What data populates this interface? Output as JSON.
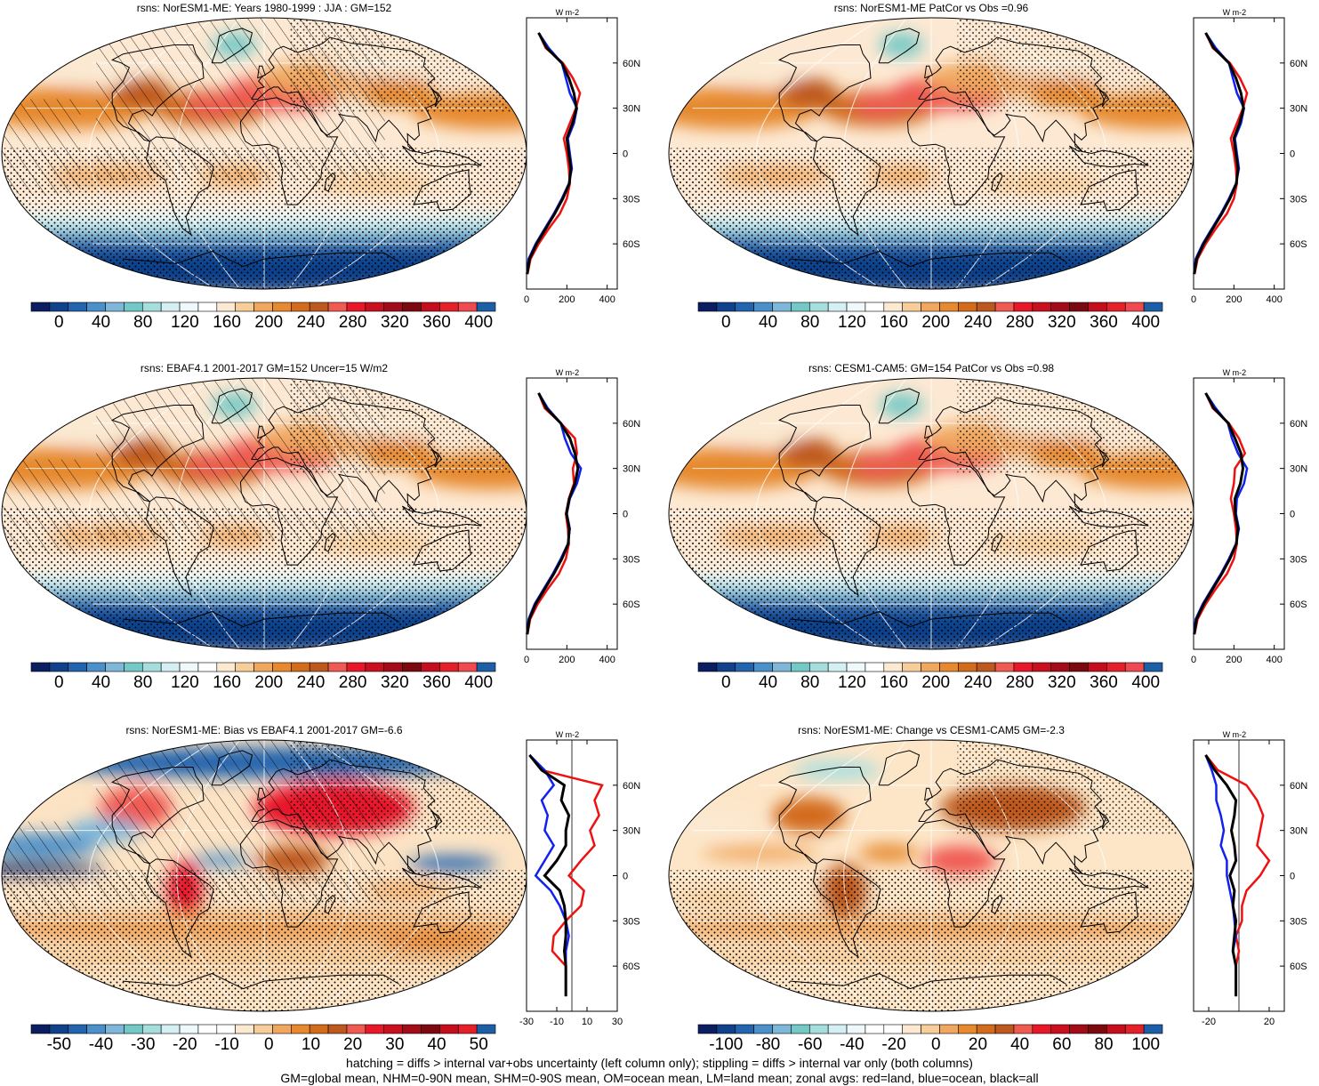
{
  "palettes": {
    "abs": [
      "#0c1e62",
      "#11418a",
      "#2264ad",
      "#4c90c9",
      "#7fb7d9",
      "#74c9c6",
      "#a6dede",
      "#d4f0f2",
      "#eff9fb",
      "#ffffff",
      "#fbe9d2",
      "#f7cd9a",
      "#f0a760",
      "#e6892f",
      "#d26b1c",
      "#bd581e",
      "#ef5a52",
      "#e8172a",
      "#c9101f",
      "#a20c18",
      "#7c0810",
      "#c40e1e",
      "#e4212b",
      "#ef4a4f",
      "#1c5fa6"
    ],
    "diff": [
      "#0c1e62",
      "#11418a",
      "#2264ad",
      "#4c90c9",
      "#7fb7d9",
      "#74c9c6",
      "#a6dede",
      "#d4f0f2",
      "#eff9fb",
      "#ffffff",
      "#ffffff",
      "#fbe9d2",
      "#f7cd9a",
      "#f0a760",
      "#e6892f",
      "#d26b1c",
      "#bd581e",
      "#ef5a52",
      "#e8172a",
      "#c9101f",
      "#a20c18",
      "#7c0810",
      "#c40e1e",
      "#e4212b",
      "#1c5fa6"
    ]
  },
  "chart_data": [
    {
      "type": "heatmap",
      "title": "rsns: NorESM1-ME: Years 1980-1999 : JJA : GM=152",
      "colorbar_labels": [
        "0",
        "40",
        "80",
        "120",
        "160",
        "200",
        "240",
        "280",
        "320",
        "360",
        "400"
      ],
      "palette": "abs",
      "field": "abs",
      "hatching": true,
      "zonal_profile": {
        "xlim": [
          0,
          450
        ],
        "xticks": [
          "0",
          "200",
          "400"
        ],
        "unit": "W m-2",
        "ylabels": [
          "60N",
          "30N",
          "0",
          "30S",
          "60S"
        ],
        "lat": [
          80,
          70,
          60,
          50,
          40,
          30,
          20,
          10,
          0,
          -10,
          -20,
          -30,
          -40,
          -50,
          -60,
          -70,
          -80
        ],
        "land": [
          60,
          95,
          180,
          230,
          265,
          245,
          215,
          185,
          200,
          210,
          215,
          200,
          165,
          110,
          60,
          20,
          5
        ],
        "ocean": [
          60,
          110,
          175,
          195,
          215,
          250,
          235,
          205,
          215,
          225,
          210,
          175,
          135,
          90,
          45,
          10,
          2
        ],
        "all": [
          60,
          100,
          175,
          210,
          235,
          248,
          228,
          200,
          210,
          220,
          212,
          180,
          140,
          95,
          50,
          15,
          3
        ]
      }
    },
    {
      "type": "heatmap",
      "title": "rsns: NorESM1-ME PatCor vs Obs =0.96",
      "colorbar_labels": [
        "0",
        "40",
        "80",
        "120",
        "160",
        "200",
        "240",
        "280",
        "320",
        "360",
        "400"
      ],
      "palette": "abs",
      "field": "abs",
      "hatching": false,
      "zonal_profile": {
        "xlim": [
          0,
          450
        ],
        "xticks": [
          "0",
          "200",
          "400"
        ],
        "unit": "W m-2",
        "ylabels": [
          "60N",
          "30N",
          "0",
          "30S",
          "60S"
        ],
        "lat": [
          80,
          70,
          60,
          50,
          40,
          30,
          20,
          10,
          0,
          -10,
          -20,
          -30,
          -40,
          -50,
          -60,
          -70,
          -80
        ],
        "land": [
          60,
          95,
          180,
          230,
          265,
          245,
          215,
          185,
          200,
          210,
          215,
          200,
          165,
          110,
          60,
          20,
          5
        ],
        "ocean": [
          60,
          110,
          175,
          195,
          215,
          250,
          235,
          205,
          215,
          225,
          210,
          175,
          135,
          90,
          45,
          10,
          2
        ],
        "all": [
          60,
          100,
          175,
          210,
          235,
          248,
          228,
          200,
          210,
          220,
          212,
          180,
          140,
          95,
          50,
          15,
          3
        ]
      }
    },
    {
      "type": "heatmap",
      "title": "rsns: EBAF4.1 2001-2017 GM=152 Uncer=15 W/m2",
      "colorbar_labels": [
        "0",
        "40",
        "80",
        "120",
        "160",
        "200",
        "240",
        "280",
        "320",
        "360",
        "400"
      ],
      "palette": "abs",
      "field": "abs",
      "hatching": true,
      "zonal_profile": {
        "xlim": [
          0,
          450
        ],
        "xticks": [
          "0",
          "200",
          "400"
        ],
        "unit": "W m-2",
        "ylabels": [
          "60N",
          "30N",
          "0",
          "30S",
          "60S"
        ],
        "lat": [
          80,
          70,
          60,
          50,
          40,
          30,
          20,
          10,
          0,
          -10,
          -20,
          -30,
          -40,
          -50,
          -60,
          -70,
          -80
        ],
        "land": [
          60,
          90,
          170,
          240,
          250,
          230,
          235,
          210,
          195,
          205,
          210,
          195,
          160,
          105,
          55,
          18,
          5
        ],
        "ocean": [
          60,
          105,
          170,
          190,
          220,
          270,
          250,
          215,
          200,
          215,
          205,
          170,
          130,
          85,
          40,
          10,
          2
        ],
        "all": [
          60,
          98,
          170,
          215,
          240,
          255,
          240,
          212,
          198,
          212,
          207,
          175,
          135,
          90,
          45,
          14,
          3
        ]
      }
    },
    {
      "type": "heatmap",
      "title": "rsns: CESM1-CAM5: GM=154 PatCor vs Obs =0.98",
      "colorbar_labels": [
        "0",
        "40",
        "80",
        "120",
        "160",
        "200",
        "240",
        "280",
        "320",
        "360",
        "400"
      ],
      "palette": "abs",
      "field": "abs",
      "hatching": false,
      "zonal_profile": {
        "xlim": [
          0,
          450
        ],
        "xticks": [
          "0",
          "200",
          "400"
        ],
        "unit": "W m-2",
        "ylabels": [
          "60N",
          "30N",
          "0",
          "30S",
          "60S"
        ],
        "lat": [
          80,
          70,
          60,
          50,
          40,
          30,
          20,
          10,
          0,
          -10,
          -20,
          -30,
          -40,
          -50,
          -60,
          -70,
          -80
        ],
        "land": [
          60,
          95,
          175,
          225,
          255,
          205,
          200,
          185,
          200,
          210,
          215,
          200,
          165,
          110,
          60,
          20,
          5
        ],
        "ocean": [
          60,
          110,
          170,
          190,
          220,
          265,
          250,
          215,
          210,
          225,
          210,
          175,
          135,
          90,
          45,
          10,
          2
        ],
        "all": [
          60,
          100,
          172,
          205,
          235,
          245,
          232,
          205,
          206,
          220,
          212,
          180,
          140,
          95,
          50,
          15,
          3
        ]
      }
    },
    {
      "type": "heatmap",
      "title": "rsns: NorESM1-ME: Bias vs EBAF4.1 2001-2017 GM=-6.6",
      "colorbar_labels": [
        "-50",
        "-40",
        "-30",
        "-20",
        "-10",
        "0",
        "10",
        "20",
        "30",
        "40",
        "50"
      ],
      "palette": "diff",
      "field": "bias",
      "hatching": true,
      "zonal_profile": {
        "xlim": [
          -30,
          30
        ],
        "xticks": [
          "-30",
          "-10",
          "10",
          "30"
        ],
        "unit": "W m-2",
        "ylabels": [
          "60N",
          "30N",
          "0",
          "30S",
          "60S"
        ],
        "lat": [
          80,
          70,
          60,
          50,
          40,
          30,
          20,
          10,
          0,
          -10,
          -20,
          -30,
          -40,
          -50,
          -60,
          -70,
          -80
        ],
        "land": [
          -28,
          -20,
          20,
          15,
          18,
          12,
          15,
          6,
          -2,
          8,
          6,
          -4,
          -12,
          -13,
          -4,
          -4,
          -4
        ],
        "ocean": [
          -28,
          -18,
          -12,
          -20,
          -16,
          -18,
          -12,
          -18,
          -24,
          -14,
          -8,
          -4,
          -2,
          -4,
          -4,
          -4,
          -4
        ],
        "all": [
          -28,
          -20,
          -5,
          -7,
          -2,
          -4,
          -4,
          -10,
          -18,
          -8,
          -5,
          -4,
          -4,
          -5,
          -4,
          -4,
          -4
        ]
      }
    },
    {
      "type": "heatmap",
      "title": "rsns: NorESM1-ME: Change vs CESM1-CAM5 GM=-2.3",
      "colorbar_labels": [
        "-100",
        "-80",
        "-60",
        "-40",
        "-20",
        "0",
        "20",
        "40",
        "60",
        "80",
        "100"
      ],
      "palette": "diff",
      "field": "change",
      "hatching": false,
      "zonal_profile": {
        "xlim": [
          -30,
          30
        ],
        "xticks": [
          "-20",
          "20"
        ],
        "unit": "W m-2",
        "ylabels": [
          "60N",
          "30N",
          "0",
          "30S",
          "60S"
        ],
        "lat": [
          80,
          70,
          60,
          50,
          40,
          30,
          20,
          10,
          0,
          -10,
          -20,
          -30,
          -40,
          -50,
          -60,
          -70,
          -80
        ],
        "land": [
          -22,
          -14,
          5,
          12,
          16,
          14,
          12,
          20,
          14,
          5,
          2,
          2,
          -2,
          0,
          -2,
          -2,
          -2
        ],
        "ocean": [
          -22,
          -18,
          -15,
          -15,
          -12,
          -10,
          -12,
          -8,
          -8,
          -6,
          -4,
          -3,
          -2,
          -4,
          -2,
          -2,
          -2
        ],
        "all": [
          -22,
          -16,
          -8,
          -2,
          -3,
          -5,
          -3,
          -2,
          -6,
          -3,
          -4,
          -2,
          -3,
          -4,
          -2,
          -2,
          -2
        ]
      }
    }
  ],
  "footer": {
    "line1": "hatching = diffs > internal var+obs uncertainty (left column only); stippling = diffs > internal var only (both columns)",
    "line2": "GM=global mean, NHM=0-90N mean, SHM=0-90S mean, OM=ocean mean, LM=land mean; zonal avgs: red=land, blue=ocean, black=all"
  }
}
